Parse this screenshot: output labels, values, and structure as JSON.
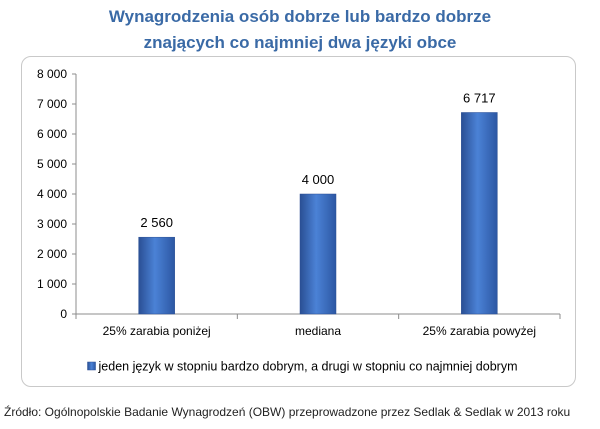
{
  "title_line1": "Wynagrodzenia osób dobrze lub bardzo dobrze",
  "title_line2": "znających co najmniej dwa języki obce",
  "source": "Źródło: Ogólnopolskie Badanie Wynagrodzeń (OBW) przeprowadzone przez Sedlak & Sedlak w 2013 roku",
  "chart_data": {
    "type": "bar",
    "categories": [
      "25% zarabia poniżej",
      "mediana",
      "25% zarabia powyżej"
    ],
    "series": [
      {
        "name": "jeden język w stopniu bardzo dobrym, a drugi w stopniu co najmniej dobrym",
        "values": [
          2560,
          4000,
          6717
        ],
        "value_labels": [
          "2 560",
          "4 000",
          "6 717"
        ],
        "color": "#3a6cc0"
      }
    ],
    "ylim": [
      0,
      8000
    ],
    "yticks": [
      0,
      1000,
      2000,
      3000,
      4000,
      5000,
      6000,
      7000,
      8000
    ],
    "ytick_labels": [
      "0",
      "1 000",
      "2 000",
      "3 000",
      "4 000",
      "5 000",
      "6 000",
      "7 000",
      "8 000"
    ],
    "grid": false,
    "legend_position": "bottom"
  }
}
